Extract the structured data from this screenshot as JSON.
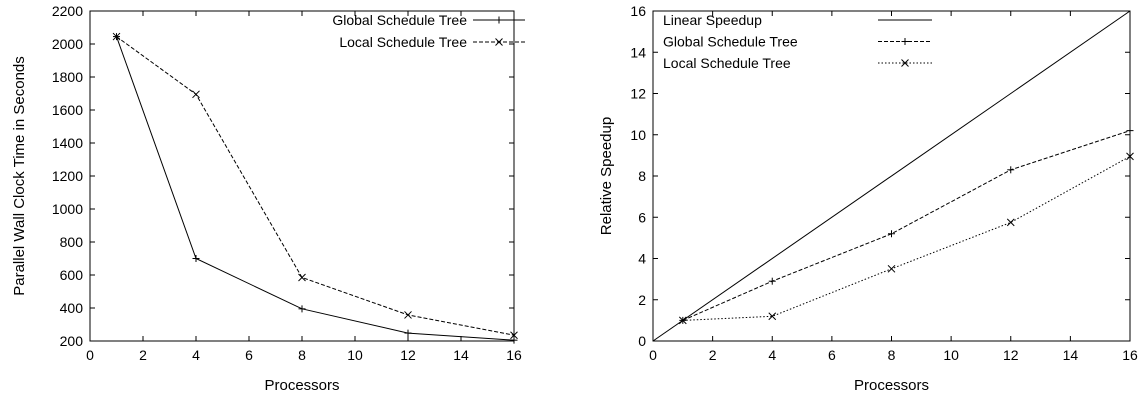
{
  "chart_data": [
    {
      "type": "line",
      "xlabel": "Processors",
      "ylabel": "Parallel Wall Clock Time in Seconds",
      "xlim": [
        0,
        16
      ],
      "ylim": [
        200,
        2200
      ],
      "xticks": [
        0,
        2,
        4,
        6,
        8,
        10,
        12,
        14,
        16
      ],
      "yticks": [
        200,
        400,
        600,
        800,
        1000,
        1200,
        1400,
        1600,
        1800,
        2000,
        2200
      ],
      "legend_position": "top-right",
      "grid": false,
      "series": [
        {
          "name": "Global Schedule Tree",
          "style": "solid",
          "marker": "plus",
          "x": [
            1,
            4,
            8,
            12,
            16
          ],
          "values": [
            2045,
            700,
            395,
            248,
            205
          ]
        },
        {
          "name": "Local Schedule Tree",
          "style": "dashed",
          "marker": "cross",
          "x": [
            1,
            4,
            8,
            12,
            16
          ],
          "values": [
            2045,
            1695,
            585,
            358,
            235
          ]
        }
      ]
    },
    {
      "type": "line",
      "xlabel": "Processors",
      "ylabel": "Relative Speedup",
      "xlim": [
        0,
        16
      ],
      "ylim": [
        0,
        16
      ],
      "xticks": [
        0,
        2,
        4,
        6,
        8,
        10,
        12,
        14,
        16
      ],
      "yticks": [
        0,
        2,
        4,
        6,
        8,
        10,
        12,
        14,
        16
      ],
      "legend_position": "top-left",
      "grid": false,
      "series": [
        {
          "name": "Linear Speedup",
          "style": "solid",
          "marker": "none",
          "x": [
            0,
            16
          ],
          "values": [
            0,
            16
          ]
        },
        {
          "name": "Global Schedule Tree",
          "style": "dashed",
          "marker": "plus",
          "x": [
            1,
            4,
            8,
            12,
            16
          ],
          "values": [
            1.0,
            2.9,
            5.2,
            8.3,
            10.2
          ]
        },
        {
          "name": "Local Schedule Tree",
          "style": "dotted",
          "marker": "cross",
          "x": [
            1,
            4,
            8,
            12,
            16
          ],
          "values": [
            1.0,
            1.2,
            3.5,
            5.75,
            8.95
          ]
        }
      ]
    }
  ]
}
